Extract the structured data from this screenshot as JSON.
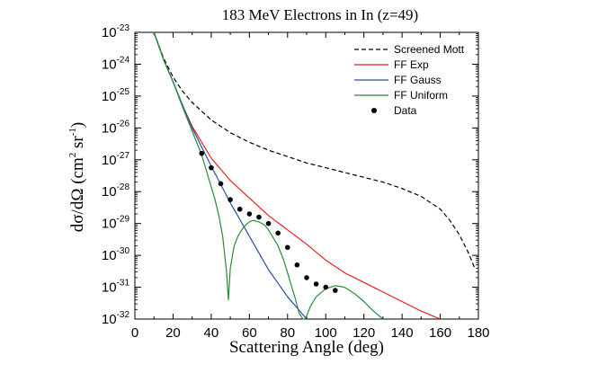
{
  "chart_data": {
    "type": "line",
    "title": "183 MeV Electrons in In (z=49)",
    "xlabel": "Scattering Angle (deg)",
    "ylabel": "dσ/dΩ (cm² sr⁻¹)",
    "ylabel_parts": {
      "main": "dσ/dΩ (cm",
      "sq": "2",
      "mid": " sr",
      "inv": "-1",
      "end": ")"
    },
    "xlim": [
      0,
      180
    ],
    "ylim_log10": [
      -32,
      -23
    ],
    "y_scale": "log",
    "grid": false,
    "legend_position": "top-right",
    "x_ticks": [
      0,
      20,
      40,
      60,
      80,
      100,
      120,
      140,
      160,
      180
    ],
    "x_tick_labels": [
      "0",
      "20",
      "40",
      "60",
      "80",
      "100",
      "120",
      "140",
      "160",
      "180"
    ],
    "y_ticks": [
      {
        "base": "10",
        "exp": "-23",
        "log": -23
      },
      {
        "base": "10",
        "exp": "-24",
        "log": -24
      },
      {
        "base": "10",
        "exp": "-25",
        "log": -25
      },
      {
        "base": "10",
        "exp": "-26",
        "log": -26
      },
      {
        "base": "10",
        "exp": "-27",
        "log": -27
      },
      {
        "base": "10",
        "exp": "-28",
        "log": -28
      },
      {
        "base": "10",
        "exp": "-29",
        "log": -29
      },
      {
        "base": "10",
        "exp": "-30",
        "log": -30
      },
      {
        "base": "10",
        "exp": "-31",
        "log": -31
      },
      {
        "base": "10",
        "exp": "-32",
        "log": -32
      }
    ],
    "series": [
      {
        "name": "Screened Mott",
        "style": "dashed",
        "color": "#000000",
        "x": [
          10,
          15,
          20,
          25,
          30,
          40,
          50,
          60,
          70,
          80,
          90,
          100,
          110,
          120,
          130,
          140,
          150,
          160,
          165,
          170,
          175,
          178
        ],
        "log10_y": [
          -23.0,
          -23.8,
          -24.4,
          -24.85,
          -25.2,
          -25.75,
          -26.15,
          -26.45,
          -26.7,
          -26.9,
          -27.1,
          -27.25,
          -27.4,
          -27.55,
          -27.7,
          -27.9,
          -28.15,
          -28.55,
          -28.9,
          -29.35,
          -29.95,
          -30.4
        ]
      },
      {
        "name": "FF Exp",
        "style": "solid",
        "color": "#e02020",
        "x": [
          10,
          15,
          20,
          25,
          30,
          35,
          40,
          50,
          60,
          70,
          80,
          90,
          100,
          110,
          120,
          130,
          140,
          150,
          160
        ],
        "log10_y": [
          -23.0,
          -23.85,
          -24.55,
          -25.3,
          -25.95,
          -26.45,
          -26.95,
          -27.65,
          -28.2,
          -28.75,
          -29.2,
          -29.65,
          -30.15,
          -30.55,
          -30.85,
          -31.15,
          -31.45,
          -31.75,
          -32.0
        ]
      },
      {
        "name": "FF Gauss",
        "style": "solid",
        "color": "#2b4da8",
        "x": [
          10,
          15,
          20,
          25,
          30,
          35,
          40,
          50,
          60,
          70,
          80,
          90
        ],
        "log10_y": [
          -23.0,
          -23.85,
          -24.55,
          -25.3,
          -26.0,
          -26.6,
          -27.2,
          -28.35,
          -29.4,
          -30.45,
          -31.3,
          -32.0
        ]
      },
      {
        "name": "FF Uniform",
        "style": "solid",
        "color": "#2a8a3a",
        "x": [
          10,
          15,
          20,
          25,
          30,
          35,
          40,
          42,
          44,
          46,
          48,
          49,
          50,
          52,
          54,
          56,
          58,
          60,
          62,
          65,
          68,
          70,
          72,
          75,
          78,
          80,
          82,
          84,
          86,
          88,
          89,
          90,
          92,
          95,
          100,
          105,
          110,
          115,
          120,
          125,
          130
        ],
        "log10_y": [
          -23.0,
          -23.85,
          -24.55,
          -25.35,
          -26.1,
          -26.85,
          -27.85,
          -28.25,
          -28.75,
          -29.4,
          -30.5,
          -31.4,
          -30.4,
          -29.7,
          -29.4,
          -29.2,
          -29.05,
          -28.95,
          -28.9,
          -28.95,
          -29.05,
          -29.2,
          -29.4,
          -29.7,
          -30.15,
          -30.55,
          -30.95,
          -31.35,
          -31.8,
          -32.0,
          -32.0,
          -31.9,
          -31.6,
          -31.3,
          -31.05,
          -30.95,
          -31.0,
          -31.2,
          -31.45,
          -31.75,
          -32.0
        ]
      },
      {
        "name": "Data",
        "style": "markers",
        "color": "#000000",
        "x": [
          35,
          40,
          45,
          50,
          55,
          60,
          65,
          70,
          75,
          80,
          85,
          90,
          95,
          100,
          105
        ],
        "log10_y": [
          -26.8,
          -27.25,
          -27.75,
          -28.25,
          -28.55,
          -28.7,
          -28.8,
          -29.0,
          -29.3,
          -29.75,
          -30.3,
          -30.7,
          -30.9,
          -31.0,
          -31.1
        ]
      }
    ]
  }
}
